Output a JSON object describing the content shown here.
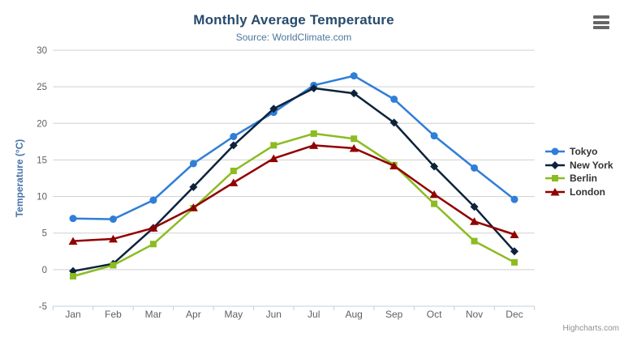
{
  "chart": {
    "credit": "Highcharts.com",
    "menu_icon": "hamburger-menu-icon",
    "colors": {
      "title": "#274b6d",
      "subtitle": "#4d759e",
      "axis_title": "#4572a7",
      "axis_label": "#606060",
      "grid": "#cfcfcf",
      "axis_line": "#c0d0e0",
      "legend_text": "#333333",
      "credit_text": "#909090",
      "menu_bars": "#666666",
      "background": "#ffffff"
    }
  },
  "chart_data": {
    "type": "line",
    "title": "Monthly Average Temperature",
    "subtitle": "Source: WorldClimate.com",
    "xlabel": "",
    "ylabel": "Temperature (°C)",
    "ylim": [
      -5,
      30
    ],
    "yticks": [
      -5,
      0,
      5,
      10,
      15,
      20,
      25,
      30
    ],
    "grid": true,
    "legend_position": "right",
    "categories": [
      "Jan",
      "Feb",
      "Mar",
      "Apr",
      "May",
      "Jun",
      "Jul",
      "Aug",
      "Sep",
      "Oct",
      "Nov",
      "Dec"
    ],
    "series": [
      {
        "name": "Tokyo",
        "color": "#2f7ed8",
        "marker": "circle",
        "values": [
          7.0,
          6.9,
          9.5,
          14.5,
          18.2,
          21.5,
          25.2,
          26.5,
          23.3,
          18.3,
          13.9,
          9.6
        ]
      },
      {
        "name": "New York",
        "color": "#0d233a",
        "marker": "diamond",
        "values": [
          -0.2,
          0.8,
          5.7,
          11.3,
          17.0,
          22.0,
          24.8,
          24.1,
          20.1,
          14.1,
          8.6,
          2.5
        ]
      },
      {
        "name": "Berlin",
        "color": "#8bbc21",
        "marker": "square",
        "values": [
          -0.9,
          0.6,
          3.5,
          8.4,
          13.5,
          17.0,
          18.6,
          17.9,
          14.3,
          9.0,
          3.9,
          1.0
        ]
      },
      {
        "name": "London",
        "color": "#910000",
        "marker": "triangle",
        "values": [
          3.9,
          4.2,
          5.7,
          8.5,
          11.9,
          15.2,
          17.0,
          16.6,
          14.2,
          10.3,
          6.6,
          4.8
        ]
      }
    ]
  }
}
